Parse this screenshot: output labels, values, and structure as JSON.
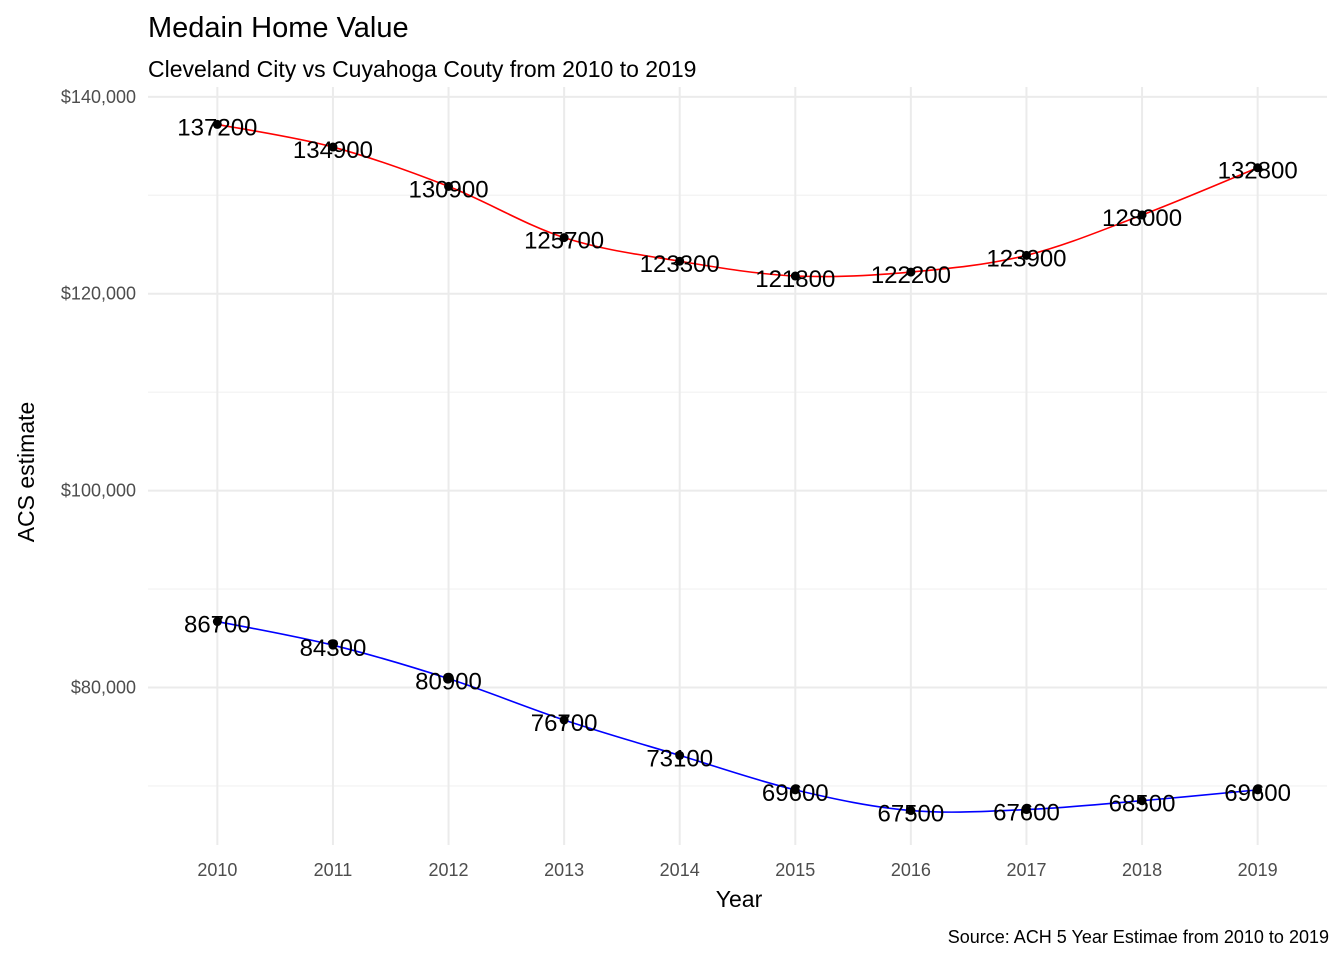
{
  "chart_data": {
    "type": "line",
    "title": "Medain Home Value",
    "subtitle": "Cleveland City vs Cuyahoga Couty from 2010 to 2019",
    "caption": "Source: ACH 5 Year Estimae from 2010 to 2019",
    "xlabel": "Year",
    "ylabel": "ACS estimate",
    "x": [
      2010,
      2011,
      2012,
      2013,
      2014,
      2015,
      2016,
      2017,
      2018,
      2019
    ],
    "x_tick_labels": [
      "2010",
      "2011",
      "2012",
      "2013",
      "2014",
      "2015",
      "2016",
      "2017",
      "2018",
      "2019"
    ],
    "ylim": [
      64000,
      141000
    ],
    "y_ticks": [
      80000,
      100000,
      120000,
      140000
    ],
    "y_tick_labels": [
      "$80,000",
      "$100,000",
      "$120,000",
      "$140,000"
    ],
    "y_minor_ticks": [
      70000,
      90000,
      110000,
      130000
    ],
    "grid": true,
    "legend": "none",
    "series": [
      {
        "color": "#ff0000",
        "values": [
          137200,
          134900,
          130900,
          125700,
          123300,
          121800,
          122200,
          123900,
          128000,
          132800
        ],
        "labels": [
          "137200",
          "134900",
          "130900",
          "125700",
          "123300",
          "121800",
          "122200",
          "123900",
          "128000",
          "132800"
        ]
      },
      {
        "color": "#0000ff",
        "values": [
          86700,
          84300,
          80900,
          76700,
          73100,
          69600,
          67500,
          67600,
          68500,
          69600
        ],
        "labels": [
          "86700",
          "84300",
          "80900",
          "76700",
          "73100",
          "69600",
          "67500",
          "67600",
          "68500",
          "69600"
        ]
      }
    ]
  }
}
